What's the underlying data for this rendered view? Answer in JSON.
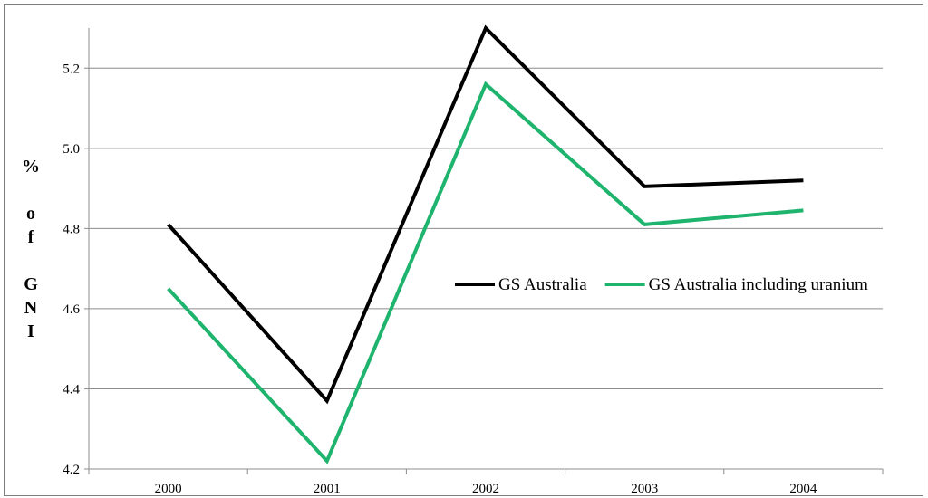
{
  "chart_data": {
    "type": "line",
    "categories": [
      "2000",
      "2001",
      "2002",
      "2003",
      "2004"
    ],
    "series": [
      {
        "name": "GS Australia",
        "color": "#000000",
        "values": [
          4.81,
          4.37,
          5.3,
          4.905,
          4.92
        ]
      },
      {
        "name": "GS Australia including uranium",
        "color": "#1fb46e",
        "values": [
          4.65,
          4.22,
          5.16,
          4.81,
          4.845
        ]
      }
    ],
    "ylabel": "% of GNI",
    "ylabel_lines": [
      "%",
      "",
      "o",
      "f",
      "",
      "G",
      "N",
      "I"
    ],
    "ylim": [
      4.2,
      5.3
    ],
    "yticks": [
      "4.2",
      "4.4",
      "4.6",
      "4.8",
      "5.0",
      "5.2"
    ],
    "grid": true,
    "legend_position": "right-middle"
  }
}
